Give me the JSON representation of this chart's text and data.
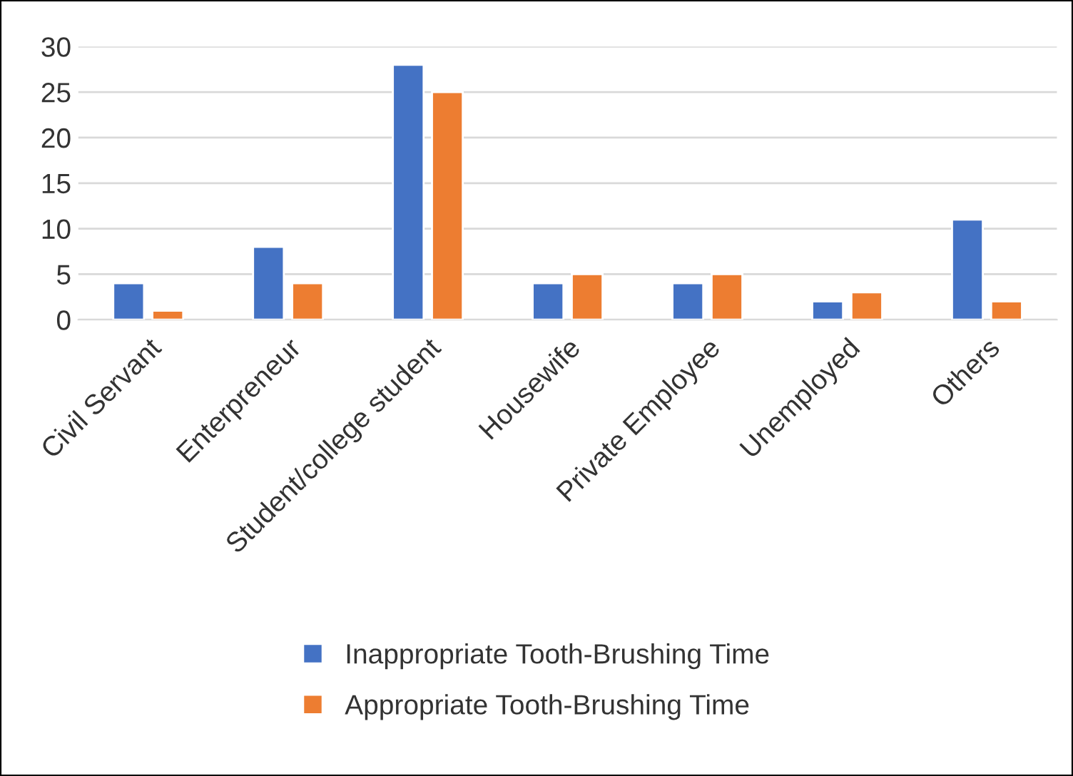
{
  "chart_data": {
    "type": "bar",
    "categories": [
      "Civil Servant",
      "Enterpreneur",
      "Student/college student",
      "Housewife",
      "Private Employee",
      "Unemployed",
      "Others"
    ],
    "series": [
      {
        "name": "Inappropriate Tooth-Brushing Time",
        "color": "#4472c4",
        "values": [
          4,
          8,
          28,
          4,
          4,
          2,
          11
        ]
      },
      {
        "name": "Appropriate Tooth-Brushing Time",
        "color": "#ed7d31",
        "values": [
          1,
          4,
          25,
          5,
          5,
          3,
          2
        ]
      }
    ],
    "ylim": [
      0,
      30
    ],
    "yticks": [
      0,
      5,
      10,
      15,
      20,
      25,
      30
    ],
    "grid": "y",
    "legend": "bottom"
  }
}
